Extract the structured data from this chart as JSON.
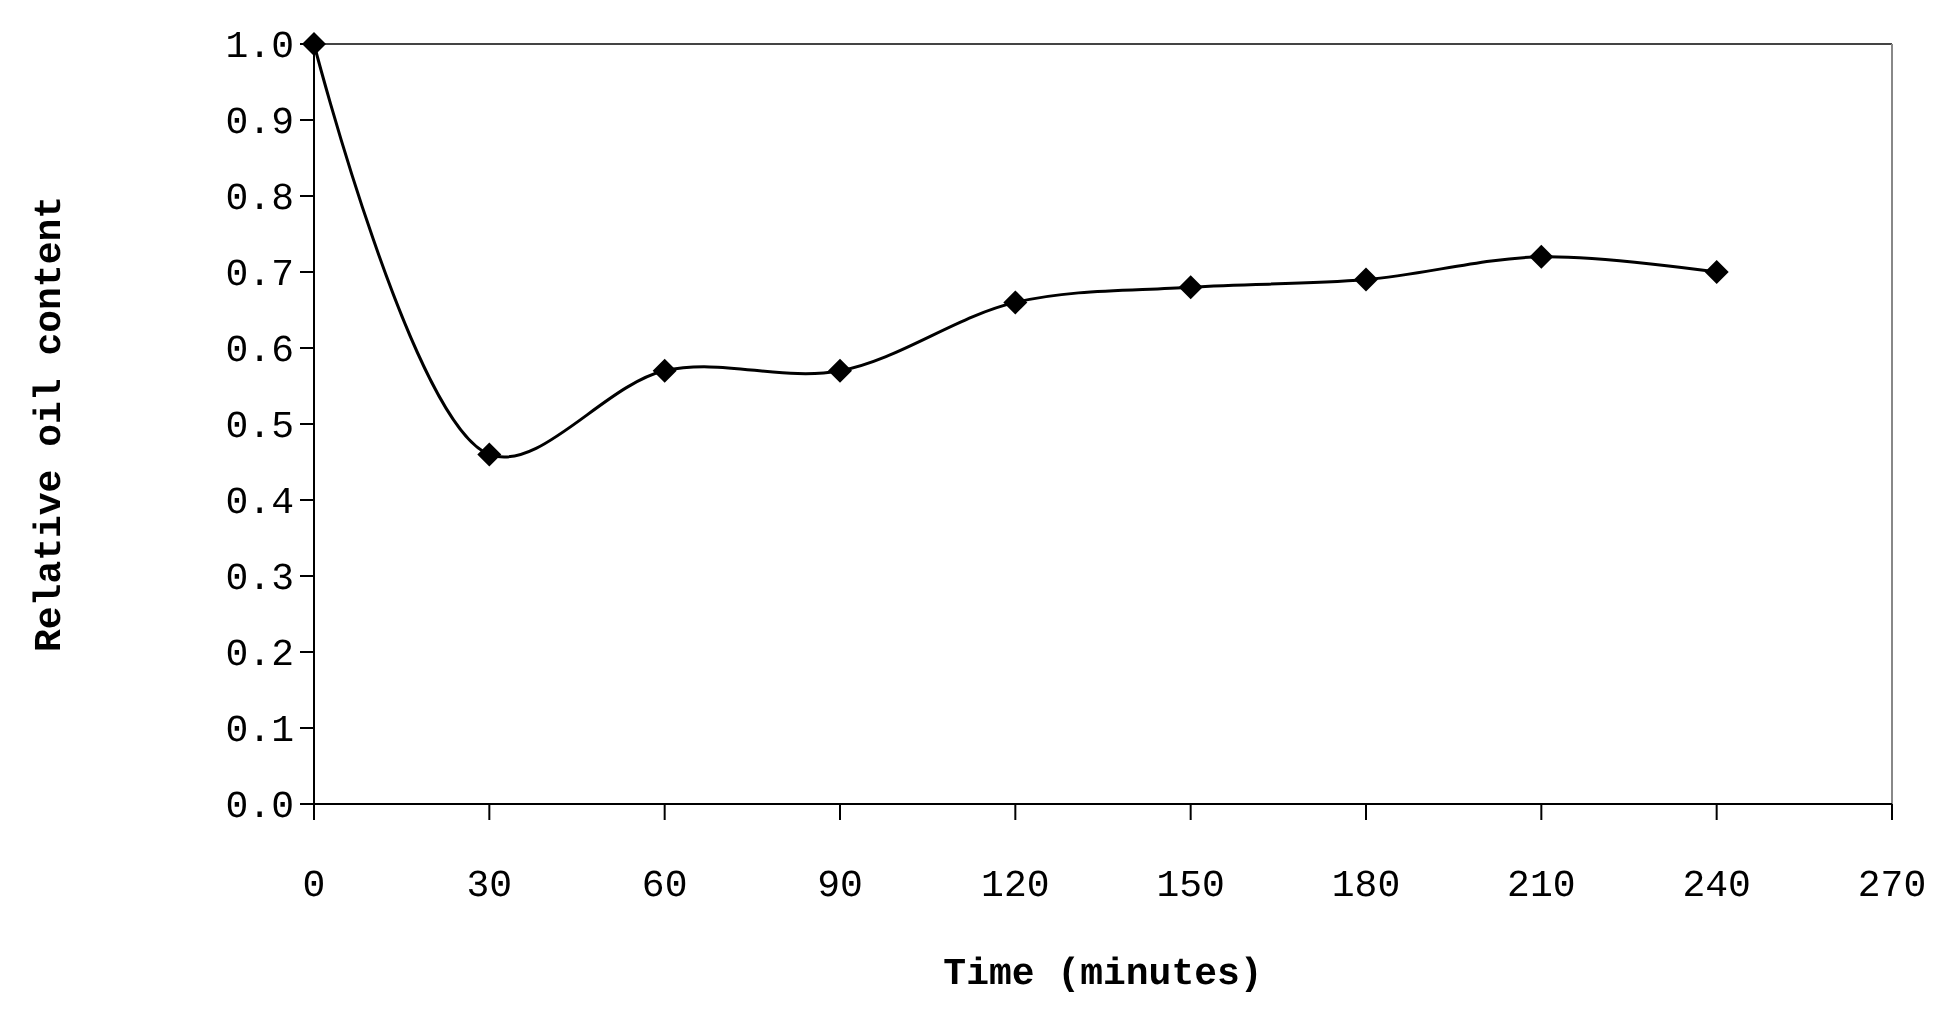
{
  "chart_data": {
    "type": "line",
    "xlabel": "Time (minutes)",
    "ylabel": "Relative oil content",
    "x": [
      0,
      30,
      60,
      90,
      120,
      150,
      180,
      210,
      240
    ],
    "series": [
      {
        "color": "#000000",
        "values": [
          1.0,
          0.46,
          0.57,
          0.57,
          0.66,
          0.68,
          0.69,
          0.72,
          0.7
        ]
      }
    ],
    "xlim": [
      0,
      270
    ],
    "xticks": [
      0,
      30,
      60,
      90,
      120,
      150,
      180,
      210,
      240,
      270
    ],
    "ylim": [
      0,
      1
    ],
    "yticks": [
      {
        "value": 0,
        "label": "0.0"
      },
      {
        "value": 0.1,
        "label": "0.1"
      },
      {
        "value": 0.2,
        "label": "0.2"
      },
      {
        "value": 0.3,
        "label": "0.3"
      },
      {
        "value": 0.4,
        "label": "0.4"
      },
      {
        "value": 0.5,
        "label": "0.5"
      },
      {
        "value": 0.6,
        "label": "0.6"
      },
      {
        "value": 0.7,
        "label": "0.7"
      },
      {
        "value": 0.8,
        "label": "0.8"
      },
      {
        "value": 0.9,
        "label": "0.9"
      },
      {
        "value": 1,
        "label": "1.0"
      }
    ],
    "grid": false,
    "marker": "diamond",
    "line_style": "solid"
  }
}
